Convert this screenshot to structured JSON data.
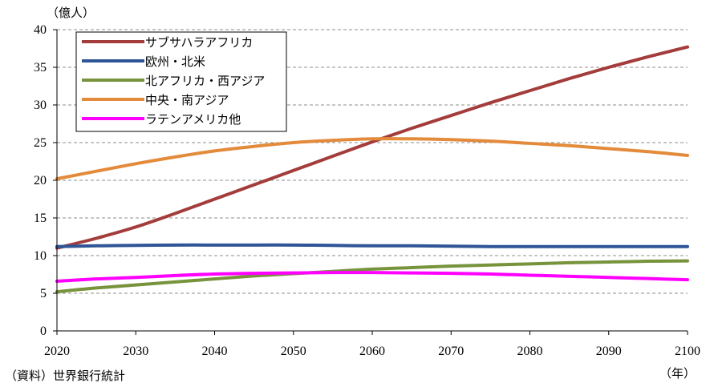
{
  "chart_data": {
    "type": "line",
    "unit_label": "（億人）",
    "x_unit_label": "（年）",
    "source": "（資料）世界銀行統計",
    "x": [
      2020,
      2025,
      2030,
      2035,
      2040,
      2045,
      2050,
      2055,
      2060,
      2065,
      2070,
      2075,
      2080,
      2085,
      2090,
      2095,
      2100
    ],
    "x_ticks": [
      "2020",
      "2030",
      "2040",
      "2050",
      "2060",
      "2070",
      "2080",
      "2090",
      "2100"
    ],
    "y_ticks": [
      "0",
      "5",
      "10",
      "15",
      "20",
      "25",
      "30",
      "35",
      "40"
    ],
    "xlim": [
      2020,
      2100
    ],
    "ylim": [
      0,
      40
    ],
    "grid": "horizontal-dashed",
    "legend_position": "top-left",
    "series": [
      {
        "name": "サブサハラアフリカ",
        "color": "#a33c3a",
        "values": [
          11.0,
          12.3,
          13.8,
          15.6,
          17.5,
          19.4,
          21.3,
          23.2,
          25.1,
          26.9,
          28.6,
          30.3,
          31.9,
          33.5,
          35.0,
          36.4,
          37.7
        ]
      },
      {
        "name": "欧州・北米",
        "color": "#2f5597",
        "values": [
          11.2,
          11.3,
          11.35,
          11.4,
          11.4,
          11.4,
          11.4,
          11.35,
          11.3,
          11.3,
          11.25,
          11.2,
          11.2,
          11.2,
          11.2,
          11.2,
          11.2
        ]
      },
      {
        "name": "北アフリカ・西アジア",
        "color": "#77933c",
        "values": [
          5.2,
          5.7,
          6.1,
          6.5,
          6.9,
          7.3,
          7.6,
          7.9,
          8.2,
          8.4,
          8.6,
          8.75,
          8.9,
          9.05,
          9.15,
          9.25,
          9.3
        ]
      },
      {
        "name": "中央・南アジア",
        "color": "#e38a3b",
        "values": [
          20.2,
          21.2,
          22.2,
          23.1,
          23.9,
          24.5,
          25.0,
          25.3,
          25.5,
          25.5,
          25.4,
          25.2,
          24.9,
          24.6,
          24.2,
          23.8,
          23.3
        ]
      },
      {
        "name": "ラテンアメリカ他",
        "color": "#ff00ff",
        "values": [
          6.6,
          6.9,
          7.1,
          7.35,
          7.55,
          7.65,
          7.7,
          7.75,
          7.75,
          7.7,
          7.65,
          7.55,
          7.4,
          7.25,
          7.1,
          6.95,
          6.8
        ]
      }
    ]
  }
}
